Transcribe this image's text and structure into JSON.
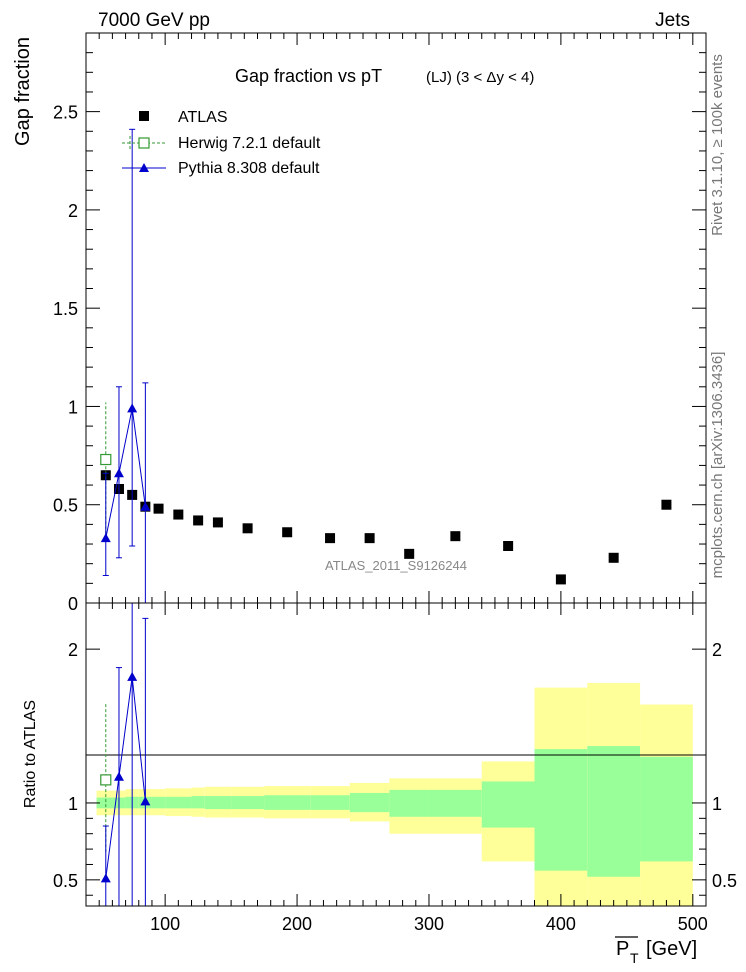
{
  "header": {
    "left": "7000 GeV pp",
    "right": "Jets"
  },
  "side_labels": {
    "rivet": "Rivet 3.1.10, ≥ 100k events",
    "mcplots": "mcplots.cern.ch [arXiv:1306.3436]"
  },
  "chart_data": {
    "type": "scatter",
    "title": "Gap fraction vs pT",
    "subtitle": "(LJ) (3 < Δy < 4)",
    "analysis_label": "ATLAS_2011_S9126244",
    "xlabel": "P̅T [GeV]",
    "xlabel_main": "P",
    "xlabel_sub": "T",
    "xlabel_unit": "[GeV]",
    "ylabel": "Gap fraction",
    "ratio_ylabel": "Ratio to ATLAS",
    "xlim": [
      40,
      510
    ],
    "ylim": [
      0,
      2.9
    ],
    "ratio_ylim": [
      0.33,
      2.3
    ],
    "x_ticks": [
      100,
      200,
      300,
      400,
      500
    ],
    "y_ticks": [
      0.5,
      1,
      1.5,
      2,
      2.5
    ],
    "y_tick_labels": [
      "0.5",
      "1",
      "1.5",
      "2",
      "2.5"
    ],
    "y_cut_label": "0",
    "ratio_ticks": [
      0.5,
      1,
      2
    ],
    "ratio_tick_labels": [
      "0.5",
      "1",
      "2"
    ],
    "legend_position": "top-left",
    "series": [
      {
        "name": "ATLAS",
        "style": "data",
        "color": "#000000",
        "x": [
          55,
          65,
          75,
          85,
          95,
          110,
          125,
          140,
          162.5,
          192.5,
          225,
          255,
          285,
          320,
          360,
          400,
          440,
          480
        ],
        "y": [
          0.65,
          0.58,
          0.55,
          0.49,
          0.48,
          0.45,
          0.42,
          0.41,
          0.38,
          0.36,
          0.33,
          0.33,
          0.25,
          0.34,
          0.29,
          0.12,
          0.23,
          0.5
        ]
      },
      {
        "name": "Herwig 7.2.1 default",
        "style": "herwig",
        "color": "#339933",
        "x": [
          55
        ],
        "y": [
          0.73
        ],
        "yerr_lo": [
          0.38
        ],
        "yerr_hi": [
          0.29
        ],
        "ratio": [
          1.15
        ],
        "ratio_lo": [
          0.68
        ],
        "ratio_hi": [
          1.65
        ]
      },
      {
        "name": "Pythia 8.308 default",
        "style": "pythia",
        "color": "#0000cc",
        "x": [
          55,
          65,
          75,
          85
        ],
        "y": [
          0.33,
          0.66,
          0.99,
          0.49
        ],
        "yerr_lo": [
          0.19,
          0.43,
          0.7,
          0.49
        ],
        "yerr_hi": [
          0.33,
          0.44,
          1.42,
          0.63
        ],
        "ratio": [
          0.51,
          1.17,
          1.82,
          1.01
        ],
        "ratio_lo": [
          0.33,
          0.33,
          0.33,
          0.33
        ],
        "ratio_hi": [
          0.85,
          1.88,
          2.3,
          2.2
        ]
      }
    ],
    "ratio_bands": [
      {
        "x0": 48,
        "x1": 62,
        "stat_lo": 0.965,
        "stat_hi": 1.035,
        "tot_lo": 0.92,
        "tot_hi": 1.08
      },
      {
        "x0": 62,
        "x1": 70,
        "stat_lo": 0.965,
        "stat_hi": 1.035,
        "tot_lo": 0.92,
        "tot_hi": 1.08
      },
      {
        "x0": 70,
        "x1": 80,
        "stat_lo": 0.965,
        "stat_hi": 1.04,
        "tot_lo": 0.92,
        "tot_hi": 1.09
      },
      {
        "x0": 80,
        "x1": 90,
        "stat_lo": 0.965,
        "stat_hi": 1.04,
        "tot_lo": 0.92,
        "tot_hi": 1.09
      },
      {
        "x0": 90,
        "x1": 100,
        "stat_lo": 0.965,
        "stat_hi": 1.04,
        "tot_lo": 0.92,
        "tot_hi": 1.09
      },
      {
        "x0": 100,
        "x1": 120,
        "stat_lo": 0.965,
        "stat_hi": 1.04,
        "tot_lo": 0.915,
        "tot_hi": 1.095
      },
      {
        "x0": 120,
        "x1": 130,
        "stat_lo": 0.965,
        "stat_hi": 1.045,
        "tot_lo": 0.91,
        "tot_hi": 1.1
      },
      {
        "x0": 130,
        "x1": 150,
        "stat_lo": 0.96,
        "stat_hi": 1.045,
        "tot_lo": 0.905,
        "tot_hi": 1.105
      },
      {
        "x0": 150,
        "x1": 175,
        "stat_lo": 0.96,
        "stat_hi": 1.045,
        "tot_lo": 0.905,
        "tot_hi": 1.105
      },
      {
        "x0": 175,
        "x1": 210,
        "stat_lo": 0.955,
        "stat_hi": 1.05,
        "tot_lo": 0.9,
        "tot_hi": 1.11
      },
      {
        "x0": 210,
        "x1": 240,
        "stat_lo": 0.955,
        "stat_hi": 1.05,
        "tot_lo": 0.9,
        "tot_hi": 1.11
      },
      {
        "x0": 240,
        "x1": 270,
        "stat_lo": 0.94,
        "stat_hi": 1.065,
        "tot_lo": 0.88,
        "tot_hi": 1.13
      },
      {
        "x0": 270,
        "x1": 300,
        "stat_lo": 0.91,
        "stat_hi": 1.085,
        "tot_lo": 0.8,
        "tot_hi": 1.16
      },
      {
        "x0": 300,
        "x1": 340,
        "stat_lo": 0.91,
        "stat_hi": 1.085,
        "tot_lo": 0.8,
        "tot_hi": 1.16
      },
      {
        "x0": 340,
        "x1": 380,
        "stat_lo": 0.84,
        "stat_hi": 1.14,
        "tot_lo": 0.62,
        "tot_hi": 1.27
      },
      {
        "x0": 380,
        "x1": 420,
        "stat_lo": 0.56,
        "stat_hi": 1.35,
        "tot_lo": 0.33,
        "tot_hi": 1.75
      },
      {
        "x0": 420,
        "x1": 460,
        "stat_lo": 0.52,
        "stat_hi": 1.37,
        "tot_lo": 0.33,
        "tot_hi": 1.78
      },
      {
        "x0": 460,
        "x1": 500,
        "stat_lo": 0.62,
        "stat_hi": 1.3,
        "tot_lo": 0.33,
        "tot_hi": 1.64
      }
    ],
    "band_colors": {
      "stat": "#99ff99",
      "total": "#ffff99"
    }
  }
}
